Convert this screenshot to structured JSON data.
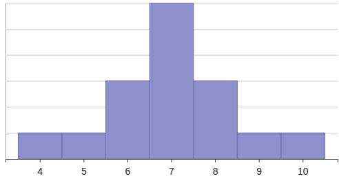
{
  "chart_data": {
    "type": "bar",
    "categories": [
      "4",
      "5",
      "6",
      "7",
      "8",
      "9",
      "10"
    ],
    "values": [
      1,
      1,
      3,
      6,
      3,
      1,
      1
    ],
    "color": "#8f8fcb",
    "ylim": [
      0,
      6
    ],
    "yticks": [
      0,
      1,
      2,
      3,
      4,
      5,
      6
    ],
    "grid": true,
    "tick_labels": "x"
  }
}
